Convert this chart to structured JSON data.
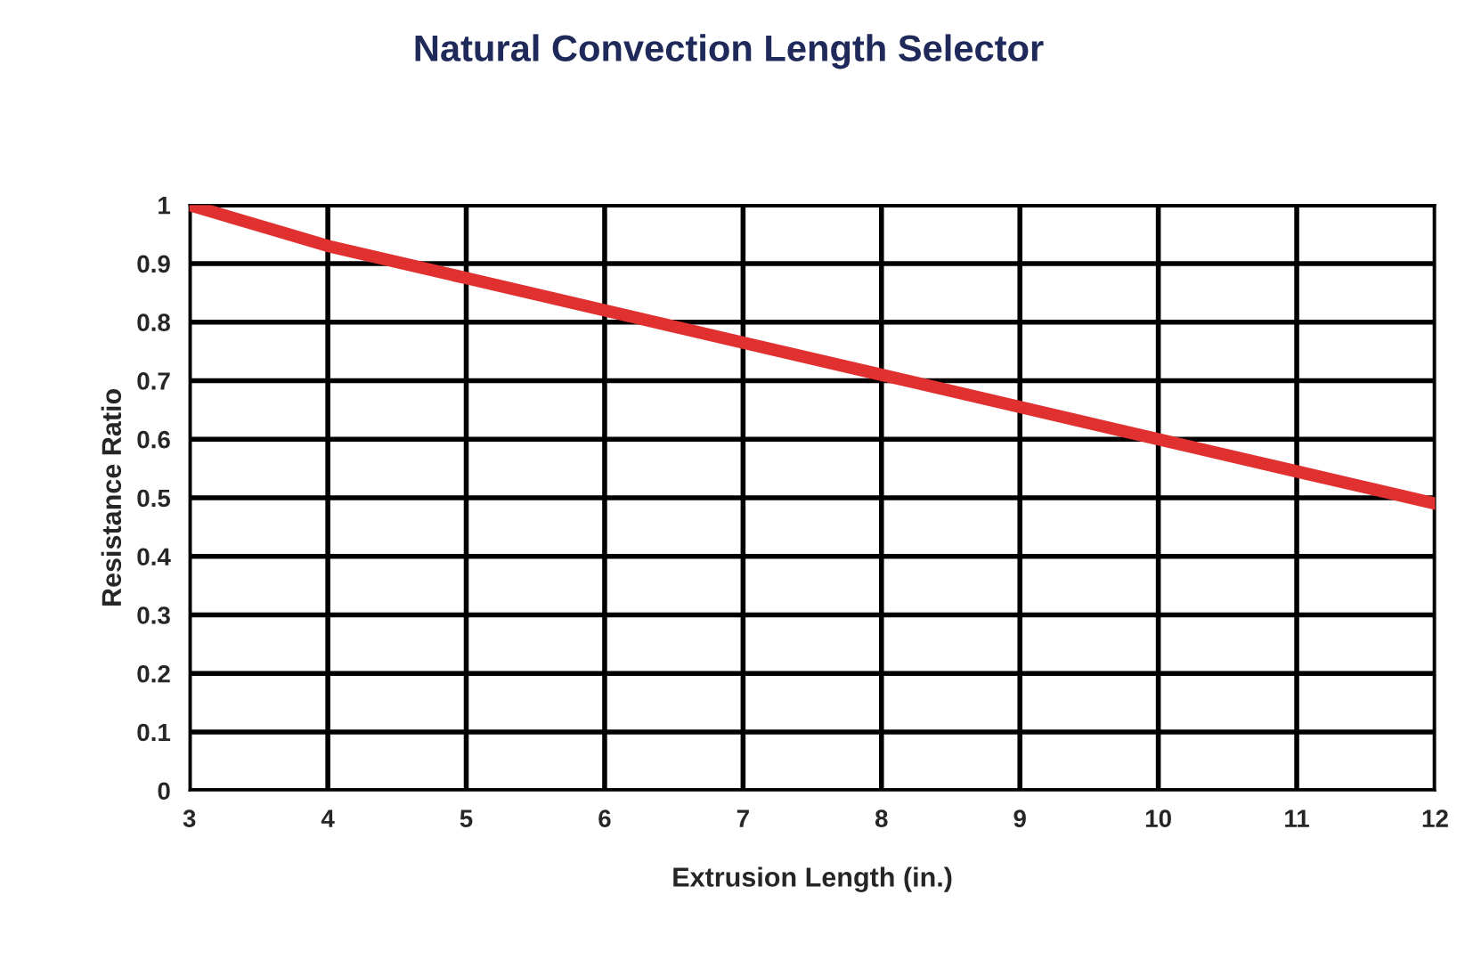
{
  "chart_data": {
    "type": "line",
    "title": "Natural Convection Length Selector",
    "xlabel": "Extrusion Length (in.)",
    "ylabel": "Resistance Ratio",
    "x": [
      3,
      4,
      5,
      6,
      7,
      8,
      9,
      10,
      11,
      12
    ],
    "series": [
      {
        "color": "#e03030",
        "values": [
          1.0,
          0.93,
          0.875,
          0.82,
          0.765,
          0.71,
          0.655,
          0.6,
          0.545,
          0.49
        ]
      }
    ],
    "xlim": [
      3,
      12
    ],
    "xticks": [
      3,
      4,
      5,
      6,
      7,
      8,
      9,
      10,
      11,
      12
    ],
    "ylim": [
      0,
      1
    ],
    "yticks": [
      0,
      0.1,
      0.2,
      0.3,
      0.4,
      0.5,
      0.6,
      0.7,
      0.8,
      0.9,
      1
    ],
    "grid": true,
    "legend": false
  }
}
